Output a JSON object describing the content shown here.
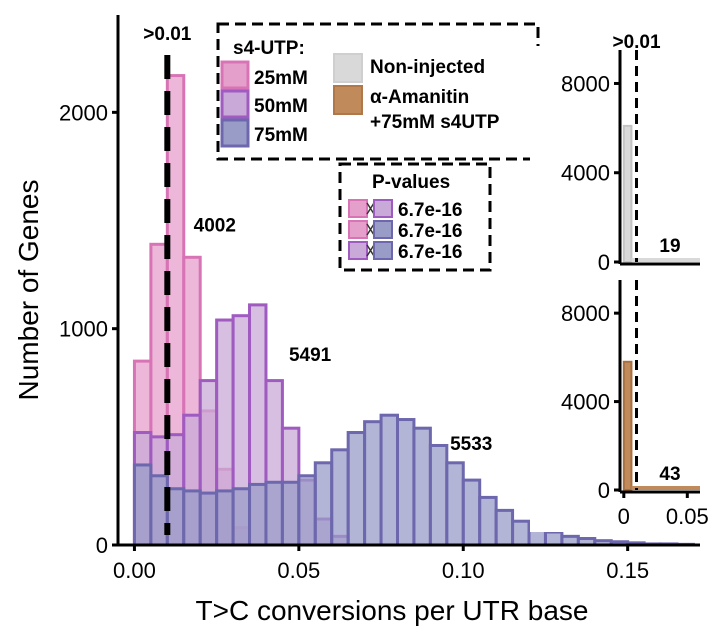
{
  "chart_data": [
    {
      "type": "bar",
      "title": "",
      "xlabel": "T>C conversions per UTR base",
      "ylabel": "Number of Genes",
      "xlim": [
        -0.005,
        0.172
      ],
      "ylim": [
        0,
        2450
      ],
      "bin_width": 0.005,
      "x_ticks": [
        0.0,
        0.05,
        0.1,
        0.15
      ],
      "x_tick_labels": [
        "0.00",
        "0.05",
        "0.10",
        "0.15"
      ],
      "y_ticks": [
        0,
        1000,
        2000
      ],
      "y_tick_labels": [
        "0",
        "1000",
        "2000"
      ],
      "threshold": {
        "x": 0.01,
        "label": ">0.01"
      },
      "series": [
        {
          "name": "25mM",
          "color": "#e59fcb",
          "edge": "#d874b6",
          "bin_starts": [
            0.0,
            0.005,
            0.01,
            0.015,
            0.02,
            0.025,
            0.03
          ],
          "values": [
            850,
            1390,
            2170,
            1330,
            620,
            350,
            80
          ]
        },
        {
          "name": "50mM",
          "color": "#c9a9d7",
          "edge": "#a05bc0",
          "bin_starts": [
            0.0,
            0.005,
            0.01,
            0.015,
            0.02,
            0.025,
            0.03,
            0.035,
            0.04,
            0.045,
            0.05,
            0.055,
            0.06
          ],
          "values": [
            520,
            500,
            510,
            600,
            760,
            1040,
            1060,
            1110,
            760,
            540,
            300,
            120,
            40
          ]
        },
        {
          "name": "75mM",
          "color": "#9a9cc8",
          "edge": "#6d67ad",
          "bin_starts": [
            0.0,
            0.005,
            0.01,
            0.015,
            0.02,
            0.025,
            0.03,
            0.035,
            0.04,
            0.045,
            0.05,
            0.055,
            0.06,
            0.065,
            0.07,
            0.075,
            0.08,
            0.085,
            0.09,
            0.095,
            0.1,
            0.105,
            0.11,
            0.115,
            0.12,
            0.125,
            0.13,
            0.135,
            0.14,
            0.145,
            0.15,
            0.155,
            0.16,
            0.165
          ],
          "values": [
            370,
            320,
            260,
            250,
            240,
            250,
            260,
            280,
            290,
            290,
            320,
            380,
            440,
            520,
            570,
            600,
            580,
            540,
            460,
            380,
            300,
            220,
            160,
            110,
            80,
            60,
            40,
            30,
            20,
            15,
            10,
            5,
            5,
            3
          ]
        }
      ],
      "annotations": [
        {
          "text": "4002",
          "x": 0.018,
          "y": 1450
        },
        {
          "text": "5491",
          "x": 0.047,
          "y": 850
        },
        {
          "text": "5533",
          "x": 0.096,
          "y": 440
        }
      ],
      "legend": {
        "title": "s4-UTP:",
        "items": [
          "25mM",
          "50mM",
          "75mM"
        ],
        "extra_items": [
          {
            "label": "Non-injected",
            "color": "#d9d9d9"
          },
          {
            "label": "α-Amanitin",
            "color": "#c18a5a"
          },
          {
            "label": "+75mM s4UTP"
          }
        ]
      },
      "pvalues": {
        "title": "P-values",
        "rows": [
          {
            "a": "25mM",
            "b": "50mM",
            "value": "6.7e-16"
          },
          {
            "a": "25mM",
            "b": "75mM",
            "value": "6.7e-16"
          },
          {
            "a": "50mM",
            "b": "75mM",
            "value": "6.7e-16"
          }
        ]
      }
    },
    {
      "type": "bar",
      "name": "Non-injected",
      "color": "#d9d9d9",
      "xlim": [
        -0.003,
        0.06
      ],
      "ylim": [
        0,
        9500
      ],
      "bars": [
        {
          "x": 0.0,
          "value": 6100
        }
      ],
      "baseline_count_label": "19",
      "threshold": {
        "x": 0.01,
        "label": ">0.01"
      },
      "y_ticks": [
        0,
        4000,
        8000
      ],
      "y_tick_labels": [
        "0",
        "4000",
        "8000"
      ]
    },
    {
      "type": "bar",
      "name": "α-Amanitin +75mM s4UTP",
      "color": "#c18a5a",
      "xlim": [
        -0.003,
        0.06
      ],
      "ylim": [
        0,
        9500
      ],
      "bars": [
        {
          "x": 0.0,
          "value": 5800
        }
      ],
      "baseline_count_label": "43",
      "threshold": {
        "x": 0.01
      },
      "y_ticks": [
        0,
        4000,
        8000
      ],
      "y_tick_labels": [
        "0",
        "4000",
        "8000"
      ],
      "x_ticks": [
        0,
        0.05
      ],
      "x_tick_labels": [
        "0",
        "0.05"
      ]
    }
  ]
}
